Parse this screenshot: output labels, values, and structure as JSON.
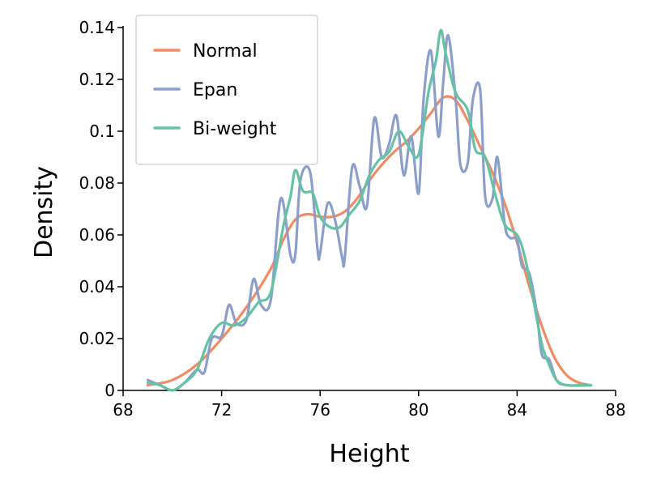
{
  "chart_data": {
    "type": "line",
    "title": "",
    "xlabel": "Height",
    "ylabel": "Density",
    "xlim": [
      68,
      88
    ],
    "ylim": [
      0,
      0.14
    ],
    "x_ticks": [
      68,
      72,
      76,
      80,
      84,
      88
    ],
    "x_tick_labels": [
      "68",
      "72",
      "76",
      "80",
      "84",
      "88"
    ],
    "y_ticks": [
      0,
      0.02,
      0.04,
      0.06,
      0.08,
      0.1,
      0.12,
      0.14
    ],
    "y_tick_labels": [
      "0",
      "0.02",
      "0.04",
      "0.06",
      "0.08",
      "0.1",
      "0.12",
      "0.14"
    ],
    "grid": false,
    "legend_position": "top-left",
    "series": [
      {
        "name": "Normal",
        "color": "#f08c65",
        "x": [
          69,
          70,
          71,
          72,
          73,
          74,
          74.5,
          75,
          75.5,
          76,
          76.5,
          77,
          77.5,
          78,
          78.5,
          79,
          79.5,
          80,
          80.5,
          81,
          81.5,
          82,
          82.5,
          83,
          83.5,
          84,
          84.5,
          85,
          85.5,
          86,
          86.5,
          87
        ],
        "y": [
          0.002,
          0.004,
          0.01,
          0.02,
          0.032,
          0.047,
          0.058,
          0.066,
          0.068,
          0.067,
          0.067,
          0.069,
          0.074,
          0.081,
          0.087,
          0.092,
          0.096,
          0.101,
          0.107,
          0.113,
          0.112,
          0.104,
          0.094,
          0.084,
          0.072,
          0.057,
          0.04,
          0.025,
          0.013,
          0.006,
          0.003,
          0.002
        ]
      },
      {
        "name": "Epan",
        "color": "#8c9fcb",
        "x": [
          69,
          69.5,
          70,
          70.5,
          71,
          71.3,
          71.6,
          72,
          72.3,
          72.6,
          73,
          73.3,
          73.6,
          74,
          74.4,
          74.8,
          75,
          75.2,
          75.6,
          75.9,
          76,
          76.3,
          76.6,
          76.9,
          77,
          77.3,
          77.6,
          77.9,
          78.2,
          78.5,
          78.8,
          79.1,
          79.4,
          79.7,
          80,
          80.2,
          80.5,
          80.8,
          81,
          81.2,
          81.5,
          81.7,
          82,
          82.2,
          82.5,
          82.7,
          83,
          83.2,
          83.5,
          83.7,
          84,
          84.2,
          84.5,
          84.8,
          85,
          85.3,
          85.6,
          86,
          87
        ],
        "y": [
          0.004,
          0.002,
          0.0,
          0.003,
          0.008,
          0.007,
          0.02,
          0.021,
          0.033,
          0.026,
          0.027,
          0.043,
          0.033,
          0.035,
          0.074,
          0.052,
          0.053,
          0.081,
          0.084,
          0.054,
          0.053,
          0.072,
          0.066,
          0.051,
          0.051,
          0.086,
          0.079,
          0.071,
          0.105,
          0.09,
          0.095,
          0.106,
          0.083,
          0.098,
          0.076,
          0.112,
          0.131,
          0.098,
          0.119,
          0.137,
          0.113,
          0.087,
          0.088,
          0.112,
          0.116,
          0.075,
          0.074,
          0.09,
          0.064,
          0.059,
          0.058,
          0.048,
          0.045,
          0.03,
          0.014,
          0.012,
          0.004,
          0.002,
          0.002
        ]
      },
      {
        "name": "Bi-weight",
        "color": "#66c2a5",
        "x": [
          69,
          69.5,
          70,
          70.5,
          71,
          71.5,
          72,
          72.5,
          73,
          73.5,
          74,
          74.5,
          74.8,
          75,
          75.3,
          75.7,
          76,
          76.4,
          76.8,
          77.2,
          77.6,
          78,
          78.4,
          78.8,
          79.2,
          79.6,
          80,
          80.4,
          80.7,
          80.9,
          81.1,
          81.5,
          82,
          82.3,
          82.7,
          83.1,
          83.5,
          84,
          84.3,
          84.6,
          85,
          85.3,
          85.6,
          86,
          86.5,
          87
        ],
        "y": [
          0.003,
          0.002,
          0.0,
          0.003,
          0.008,
          0.02,
          0.026,
          0.025,
          0.028,
          0.034,
          0.038,
          0.063,
          0.075,
          0.085,
          0.077,
          0.076,
          0.067,
          0.063,
          0.063,
          0.068,
          0.073,
          0.083,
          0.089,
          0.092,
          0.1,
          0.094,
          0.091,
          0.115,
          0.127,
          0.139,
          0.13,
          0.115,
          0.108,
          0.093,
          0.09,
          0.076,
          0.064,
          0.06,
          0.052,
          0.038,
          0.018,
          0.01,
          0.004,
          0.002,
          0.002,
          0.002
        ]
      }
    ]
  }
}
